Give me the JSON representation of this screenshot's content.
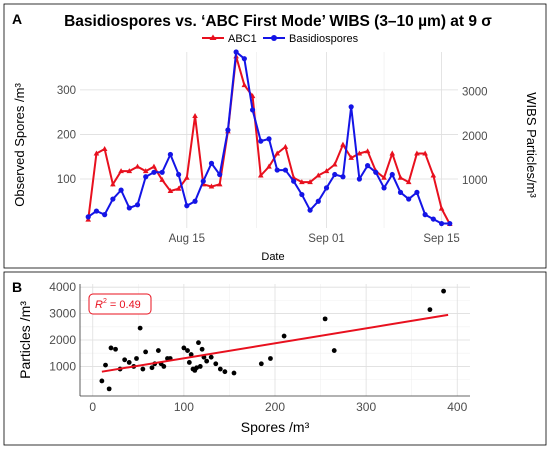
{
  "panel_labels": {
    "a": "A",
    "b": "B"
  },
  "chart_data": [
    {
      "type": "line",
      "title": "Basidiospores vs. ‘ABC First Mode’ WIBS (3–10 µm) at 9 σ",
      "xlabel": "Date",
      "ylabel_left": "Observed Spores /m³",
      "ylabel_right": "WIBS Particles/m³",
      "x_ticks": [
        "Aug 15",
        "Sep 01",
        "Sep 15"
      ],
      "y_left_ticks": [
        "100",
        "200",
        "300"
      ],
      "y_right_ticks": [
        "1000",
        "2000",
        "3000"
      ],
      "ylim_left": [
        -10,
        385
      ],
      "ylim_right": [
        -90,
        3900
      ],
      "legend_position": "top",
      "grid": true,
      "colors": {
        "ABC1": "#e8101e",
        "Basidiospores": "#1414e6"
      },
      "series": [
        {
          "name": "ABC1",
          "axis": "right",
          "x": [
            "2023-08-03",
            "2023-08-04",
            "2023-08-05",
            "2023-08-06",
            "2023-08-07",
            "2023-08-08",
            "2023-08-09",
            "2023-08-10",
            "2023-08-11",
            "2023-08-12",
            "2023-08-13",
            "2023-08-14",
            "2023-08-15",
            "2023-08-16",
            "2023-08-17",
            "2023-08-18",
            "2023-08-19",
            "2023-08-20",
            "2023-08-21",
            "2023-08-22",
            "2023-08-23",
            "2023-08-24",
            "2023-08-25",
            "2023-08-26",
            "2023-08-27",
            "2023-08-28",
            "2023-08-29",
            "2023-08-30",
            "2023-08-31",
            "2023-09-01",
            "2023-09-02",
            "2023-09-03",
            "2023-09-04",
            "2023-09-05",
            "2023-09-06",
            "2023-09-07",
            "2023-09-08",
            "2023-09-09",
            "2023-09-10",
            "2023-09-11",
            "2023-09-12",
            "2023-09-13",
            "2023-09-14",
            "2023-09-15",
            "2023-09-16"
          ],
          "values": [
            100,
            1600,
            1700,
            900,
            1200,
            1200,
            1300,
            1200,
            1300,
            1000,
            750,
            800,
            1050,
            2450,
            900,
            850,
            900,
            2100,
            3800,
            3150,
            2900,
            1100,
            1300,
            1600,
            1750,
            1050,
            950,
            950,
            1100,
            1200,
            1350,
            1800,
            1500,
            1600,
            1650,
            1200,
            1050,
            1600,
            1050,
            950,
            1600,
            1600,
            1100,
            350,
            0
          ],
          "values_note": ""
        },
        {
          "name": "Basidiospores",
          "axis": "left",
          "x": [
            "2023-08-03",
            "2023-08-04",
            "2023-08-05",
            "2023-08-06",
            "2023-08-07",
            "2023-08-08",
            "2023-08-09",
            "2023-08-10",
            "2023-08-11",
            "2023-08-12",
            "2023-08-13",
            "2023-08-14",
            "2023-08-15",
            "2023-08-16",
            "2023-08-17",
            "2023-08-18",
            "2023-08-19",
            "2023-08-20",
            "2023-08-21",
            "2023-08-22",
            "2023-08-23",
            "2023-08-24",
            "2023-08-25",
            "2023-08-26",
            "2023-08-27",
            "2023-08-28",
            "2023-08-29",
            "2023-08-30",
            "2023-08-31",
            "2023-09-01",
            "2023-09-02",
            "2023-09-03",
            "2023-09-04",
            "2023-09-05",
            "2023-09-06",
            "2023-09-07",
            "2023-09-08",
            "2023-09-09",
            "2023-09-10",
            "2023-09-11",
            "2023-09-12",
            "2023-09-13",
            "2023-09-14",
            "2023-09-15",
            "2023-09-16"
          ],
          "values": [
            15,
            28,
            20,
            55,
            75,
            35,
            42,
            105,
            115,
            115,
            155,
            110,
            40,
            50,
            95,
            135,
            110,
            210,
            385,
            370,
            255,
            185,
            190,
            120,
            120,
            95,
            65,
            30,
            50,
            80,
            110,
            105,
            262,
            100,
            130,
            115,
            80,
            110,
            70,
            55,
            70,
            20,
            10,
            0,
            0
          ]
        }
      ]
    },
    {
      "type": "scatter",
      "xlabel": "Spores /m³",
      "ylabel": "Particles /m³",
      "x_ticks": [
        "0",
        "100",
        "200",
        "300",
        "400"
      ],
      "y_ticks": [
        "1000",
        "2000",
        "3000",
        "4000"
      ],
      "xlim": [
        0,
        400
      ],
      "ylim": [
        0,
        4000
      ],
      "grid": true,
      "annotation": {
        "r_label": "R",
        "sup": "2",
        "value": " = 0.49"
      },
      "regression_line": {
        "x": [
          10,
          390
        ],
        "y": [
          800,
          2950
        ],
        "color": "#e8101e"
      },
      "point_color": "#000000",
      "points": [
        [
          10,
          450
        ],
        [
          14,
          1050
        ],
        [
          18,
          150
        ],
        [
          20,
          1700
        ],
        [
          25,
          1650
        ],
        [
          30,
          900
        ],
        [
          35,
          1250
        ],
        [
          40,
          1150
        ],
        [
          45,
          1000
        ],
        [
          48,
          1300
        ],
        [
          52,
          2450
        ],
        [
          55,
          900
        ],
        [
          58,
          1550
        ],
        [
          65,
          950
        ],
        [
          68,
          1100
        ],
        [
          72,
          1600
        ],
        [
          75,
          1100
        ],
        [
          78,
          1000
        ],
        [
          82,
          1300
        ],
        [
          85,
          1300
        ],
        [
          100,
          1700
        ],
        [
          104,
          1600
        ],
        [
          106,
          1150
        ],
        [
          108,
          1450
        ],
        [
          110,
          900
        ],
        [
          112,
          850
        ],
        [
          114,
          950
        ],
        [
          116,
          1900
        ],
        [
          118,
          1000
        ],
        [
          120,
          1650
        ],
        [
          122,
          1350
        ],
        [
          125,
          1200
        ],
        [
          130,
          1350
        ],
        [
          135,
          1100
        ],
        [
          140,
          900
        ],
        [
          145,
          800
        ],
        [
          155,
          750
        ],
        [
          185,
          1100
        ],
        [
          195,
          1300
        ],
        [
          210,
          2150
        ],
        [
          255,
          2800
        ],
        [
          265,
          1600
        ],
        [
          370,
          3150
        ],
        [
          385,
          3850
        ]
      ]
    }
  ]
}
